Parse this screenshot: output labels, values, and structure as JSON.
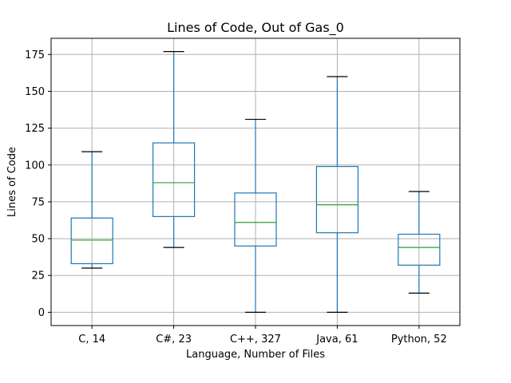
{
  "chart_data": {
    "type": "box",
    "title": "Lines of Code, Out of Gas_0",
    "xlabel": "Language, Number of Files",
    "ylabel": "Lines of Code",
    "ylim": [
      -9,
      186
    ],
    "yticks": [
      0,
      25,
      50,
      75,
      100,
      125,
      150,
      175
    ],
    "grid": true,
    "categories": [
      "C, 14",
      "C#, 23",
      "C++, 327",
      "Java, 61",
      "Python, 52"
    ],
    "boxes": [
      {
        "label": "C, 14",
        "whisker_low": 30,
        "q1": 33,
        "median": 49,
        "q3": 64,
        "whisker_high": 109
      },
      {
        "label": "C#, 23",
        "whisker_low": 44,
        "q1": 65,
        "median": 88,
        "q3": 115,
        "whisker_high": 177
      },
      {
        "label": "C++, 327",
        "whisker_low": 0,
        "q1": 45,
        "median": 61,
        "q3": 81,
        "whisker_high": 131
      },
      {
        "label": "Java, 61",
        "whisker_low": 0,
        "q1": 54,
        "median": 73,
        "q3": 99,
        "whisker_high": 160
      },
      {
        "label": "Python, 52",
        "whisker_low": 13,
        "q1": 32,
        "median": 44,
        "q3": 53,
        "whisker_high": 82
      }
    ]
  }
}
